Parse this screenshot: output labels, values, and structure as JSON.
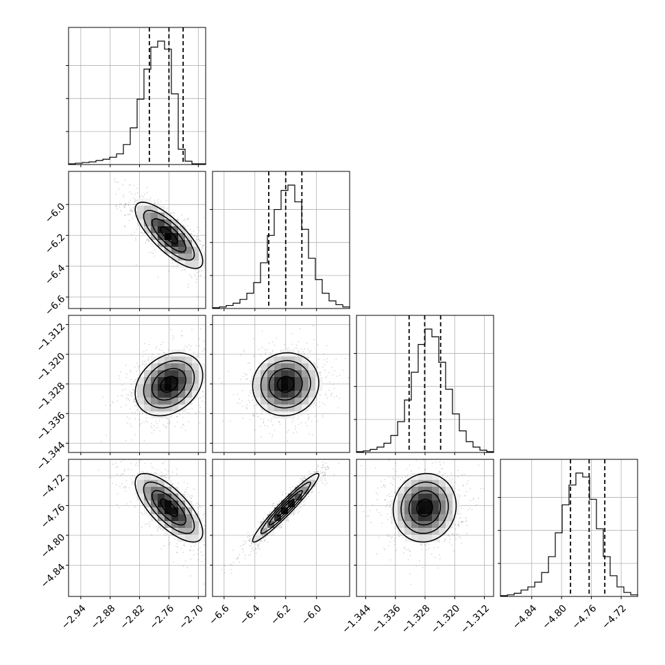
{
  "chart_data": {
    "type": "corner",
    "parameters": [
      {
        "ticks": [
          -2.94,
          -2.88,
          -2.82,
          -2.76,
          -2.7
        ],
        "tick_labels": [
          "−2.94",
          "−2.88",
          "−2.82",
          "−2.76",
          "−2.70"
        ],
        "range": [
          -2.965,
          -2.685
        ],
        "quantiles": [
          -2.8,
          -2.76,
          -2.731
        ],
        "hist_bins": [
          1,
          2,
          3,
          4,
          6,
          8,
          11,
          16,
          30,
          55,
          98,
          143,
          176,
          185,
          173,
          106,
          23,
          5,
          1,
          1
        ]
      },
      {
        "ticks": [
          -6.6,
          -6.4,
          -6.2,
          -6.0
        ],
        "tick_labels": [
          "−6.6",
          "−6.4",
          "−6.2",
          "−6.0"
        ],
        "range": [
          -6.675,
          -5.785
        ],
        "quantiles": [
          -6.31,
          -6.2,
          -6.095
        ],
        "hist_bins": [
          1,
          2,
          4,
          7,
          12,
          20,
          34,
          60,
          96,
          130,
          155,
          162,
          140,
          104,
          66,
          38,
          20,
          10,
          5,
          2
        ]
      },
      {
        "ticks": [
          -1.344,
          -1.336,
          -1.328,
          -1.32,
          -1.312
        ],
        "tick_labels": [
          "−1.344",
          "−1.336",
          "−1.328",
          "−1.320",
          "−1.312"
        ],
        "range": [
          -1.3465,
          -1.3095
        ],
        "quantiles": [
          -1.3323,
          -1.3281,
          -1.3238
        ],
        "hist_bins": [
          1,
          2,
          4,
          7,
          12,
          22,
          40,
          68,
          104,
          140,
          160,
          150,
          117,
          82,
          50,
          28,
          14,
          7,
          3,
          1
        ]
      },
      {
        "ticks": [
          -4.84,
          -4.8,
          -4.76,
          -4.72
        ],
        "tick_labels": [
          "−4.84",
          "−4.80",
          "−4.76",
          "−4.72"
        ],
        "range": [
          -4.882,
          -4.698
        ],
        "quantiles": [
          -4.788,
          -4.763,
          -4.742
        ],
        "hist_bins": [
          1,
          2,
          4,
          8,
          12,
          18,
          30,
          50,
          80,
          115,
          140,
          155,
          150,
          122,
          85,
          50,
          26,
          12,
          5,
          2
        ]
      }
    ],
    "pairs": [
      {
        "row": 1,
        "col": 0,
        "correlation": -0.78
      },
      {
        "row": 2,
        "col": 0,
        "correlation": 0.28
      },
      {
        "row": 2,
        "col": 1,
        "correlation": 0.05
      },
      {
        "row": 3,
        "col": 0,
        "correlation": -0.72
      },
      {
        "row": 3,
        "col": 1,
        "correlation": 0.96
      },
      {
        "row": 3,
        "col": 2,
        "correlation": 0.06
      }
    ],
    "grid": true,
    "colors": {
      "ink": "#000000",
      "grid": "#b0b0b0",
      "background": "#ffffff"
    }
  }
}
